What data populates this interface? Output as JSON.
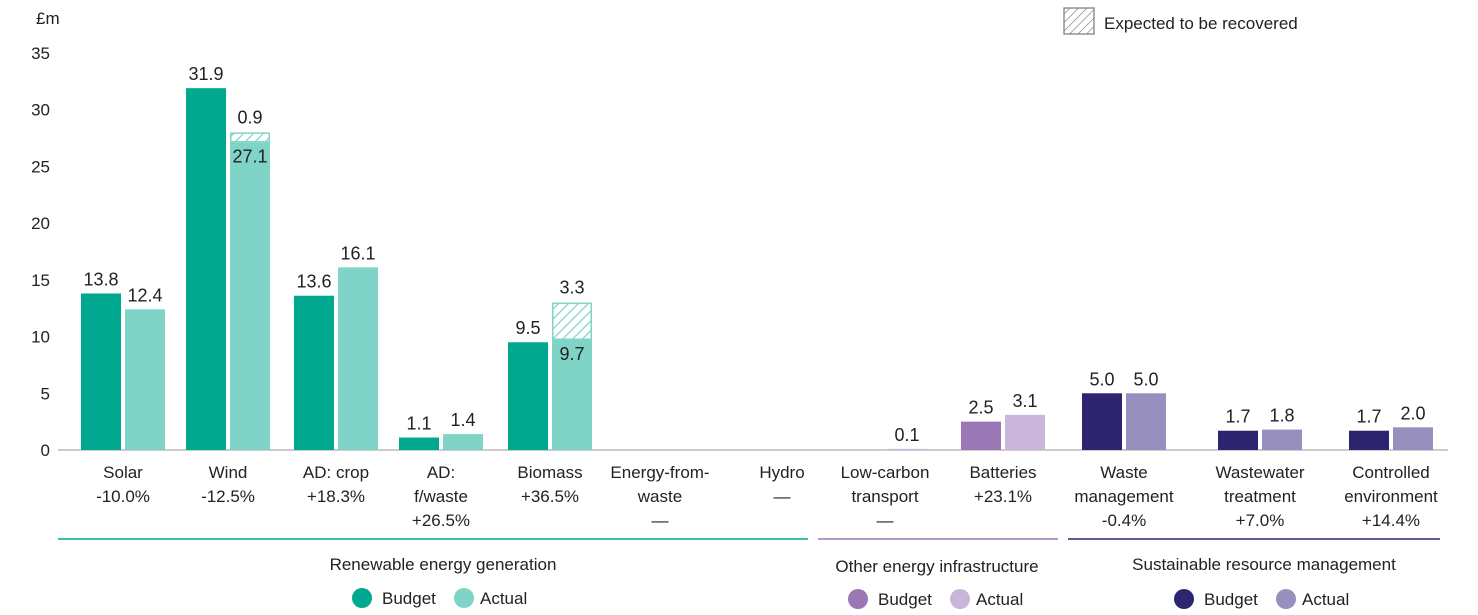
{
  "chart_data": {
    "type": "bar",
    "unit_label": "£m",
    "ylim": [
      0,
      35
    ],
    "y_ticks": [
      0,
      5,
      10,
      15,
      20,
      25,
      30,
      35
    ],
    "hatch_legend": "Expected to be recovered",
    "categories": [
      {
        "label": [
          "Solar",
          "-10.0%"
        ],
        "group": 0,
        "budget": 13.8,
        "budget_label": "13.8",
        "actual": 12.4,
        "actual_label": "12.4"
      },
      {
        "label": [
          "Wind",
          "-12.5%"
        ],
        "group": 0,
        "budget": 31.9,
        "budget_label": "31.9",
        "actual": 27.1,
        "actual_label": "27.1",
        "recovered": 0.9,
        "recovered_label": "0.9"
      },
      {
        "label": [
          "AD: crop",
          "+18.3%"
        ],
        "group": 0,
        "budget": 13.6,
        "budget_label": "13.6",
        "actual": 16.1,
        "actual_label": "16.1"
      },
      {
        "label": [
          "AD:",
          "f/waste",
          "+26.5%"
        ],
        "group": 0,
        "budget": 1.1,
        "budget_label": "1.1",
        "actual": 1.4,
        "actual_label": "1.4"
      },
      {
        "label": [
          "Biomass",
          "+36.5%"
        ],
        "group": 0,
        "budget": 9.5,
        "budget_label": "9.5",
        "actual": 9.7,
        "actual_label": "9.7",
        "recovered": 3.3,
        "recovered_label": "3.3"
      },
      {
        "label": [
          "Energy-from-",
          "waste",
          "—"
        ],
        "group": 0,
        "budget": 0,
        "budget_label": "",
        "actual": 0,
        "actual_label": ""
      },
      {
        "label": [
          "Hydro",
          "—"
        ],
        "group": 0,
        "budget": 0,
        "budget_label": "",
        "actual": 0,
        "actual_label": ""
      },
      {
        "label": [
          "Low-carbon",
          "transport",
          "—"
        ],
        "group": 1,
        "budget": 0,
        "budget_label": "",
        "actual": 0.1,
        "actual_label": "0.1"
      },
      {
        "label": [
          "Batteries",
          "+23.1%"
        ],
        "group": 1,
        "budget": 2.5,
        "budget_label": "2.5",
        "actual": 3.1,
        "actual_label": "3.1"
      },
      {
        "label": [
          "Waste",
          "management",
          "-0.4%"
        ],
        "group": 2,
        "budget": 5.0,
        "budget_label": "5.0",
        "actual": 5.0,
        "actual_label": "5.0"
      },
      {
        "label": [
          "Wastewater",
          "treatment",
          "+7.0%"
        ],
        "group": 2,
        "budget": 1.7,
        "budget_label": "1.7",
        "actual": 1.8,
        "actual_label": "1.8"
      },
      {
        "label": [
          "Controlled",
          "environment",
          "+14.4%"
        ],
        "group": 2,
        "budget": 1.7,
        "budget_label": "1.7",
        "actual": 2.0,
        "actual_label": "2.0"
      }
    ],
    "groups": [
      {
        "name": "Renewable energy generation",
        "budget_color": "#00a88f",
        "actual_color": "#7fd4c7",
        "legend": [
          "Budget",
          "Actual"
        ]
      },
      {
        "name": "Other energy infrastructure",
        "budget_color": "#9a77b5",
        "actual_color": "#c9b6da",
        "legend": [
          "Budget",
          "Actual"
        ]
      },
      {
        "name": "Sustainable resource management",
        "budget_color": "#2d2470",
        "actual_color": "#9790bf",
        "legend": [
          "Budget",
          "Actual"
        ]
      }
    ]
  }
}
